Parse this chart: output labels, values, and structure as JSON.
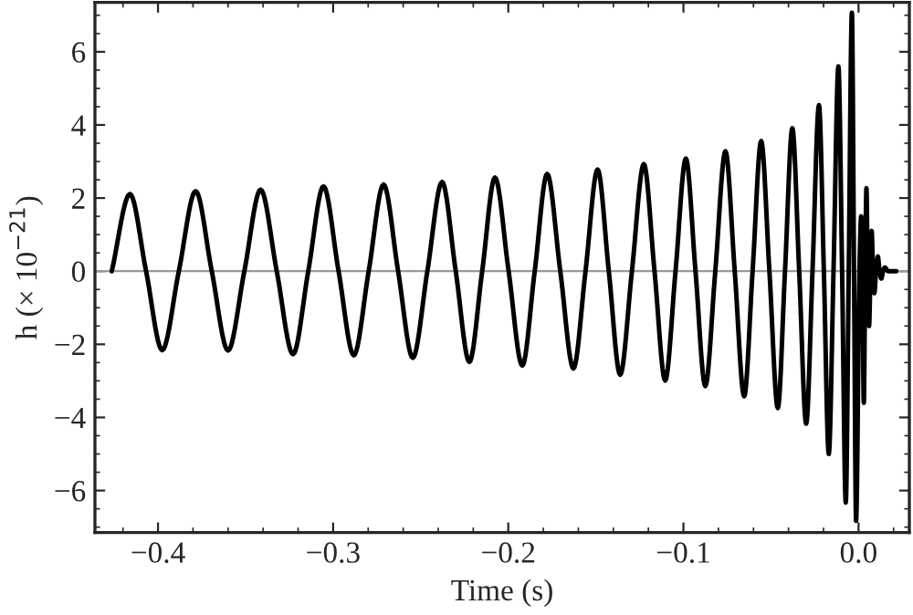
{
  "chart_data": {
    "type": "line",
    "xlabel": "Time (s)",
    "ylabel": "h (× 10$^{−21}$)",
    "x": [
      -0.4264,
      -0.416,
      -0.4068,
      -0.3976,
      -0.3881,
      -0.3785,
      -0.3693,
      -0.36,
      -0.3507,
      -0.3414,
      -0.3322,
      -0.3229,
      -0.3142,
      -0.3055,
      -0.2969,
      -0.2882,
      -0.2797,
      -0.2712,
      -0.2629,
      -0.2545,
      -0.2462,
      -0.2378,
      -0.23,
      -0.2222,
      -0.2149,
      -0.2076,
      -0.1998,
      -0.192,
      -0.1849,
      -0.1778,
      -0.1703,
      -0.1628,
      -0.1559,
      -0.149,
      -0.1426,
      -0.1361,
      -0.1294,
      -0.1226,
      -0.1165,
      -0.1104,
      -0.1045,
      -0.0986,
      -0.0931,
      -0.0875,
      -0.0818,
      -0.076,
      -0.0707,
      -0.0653,
      -0.0605,
      -0.0556,
      -0.0509,
      -0.0461,
      -0.042,
      -0.0378,
      -0.0339,
      -0.0299,
      -0.0263,
      -0.0226,
      -0.0198,
      -0.017,
      -0.0143,
      -0.0115,
      -0.0094,
      -0.0073,
      -0.0056,
      -0.0038,
      -0.0026,
      -0.0014,
      0.0005,
      0.0015,
      0.0022,
      0.003,
      0.0038,
      0.0045,
      0.0052,
      0.006,
      0.0068,
      0.0075,
      0.0082,
      0.009,
      0.01,
      0.011,
      0.012,
      0.013,
      0.014,
      0.015,
      0.017,
      0.0215
    ],
    "series": [
      {
        "color": "#000000",
        "values": [
          0,
          2.11,
          0,
          -2.16,
          0,
          2.19,
          0,
          -2.17,
          0,
          2.23,
          0,
          -2.27,
          0,
          2.32,
          0,
          -2.3,
          0,
          2.37,
          0,
          -2.37,
          0,
          2.44,
          0,
          -2.48,
          0,
          2.56,
          0,
          -2.58,
          0,
          2.66,
          0,
          -2.66,
          0,
          2.78,
          0,
          -2.83,
          0,
          2.93,
          0,
          -2.99,
          0,
          3.08,
          0,
          -3.14,
          0,
          3.28,
          0,
          -3.42,
          0,
          3.56,
          0,
          -3.74,
          0,
          3.91,
          0,
          -4.17,
          0,
          4.54,
          0,
          -5.0,
          0,
          5.6,
          0,
          -6.33,
          0,
          7.07,
          0,
          -6.83,
          0,
          1.5,
          0,
          -3.6,
          0,
          2.27,
          0,
          -1.5,
          0,
          1.1,
          0,
          -0.6,
          0,
          0.4,
          0,
          -0.2,
          0,
          0.1,
          0,
          0
        ]
      }
    ],
    "xlim": [
      -0.436,
      0.029
    ],
    "ylim": [
      -7.15,
      7.35
    ],
    "xticks": [
      {
        "value": -0.4,
        "label": "−0.4"
      },
      {
        "value": -0.3,
        "label": "−0.3"
      },
      {
        "value": -0.2,
        "label": "−0.2"
      },
      {
        "value": -0.1,
        "label": "−0.1"
      },
      {
        "value": 0.0,
        "label": "0.0"
      }
    ],
    "yticks": [
      {
        "value": -6,
        "label": "−6"
      },
      {
        "value": -4,
        "label": "−4"
      },
      {
        "value": -2,
        "label": "−2"
      },
      0,
      2,
      4,
      6
    ],
    "ref_lines": [
      {
        "axis": "y",
        "value": 0,
        "color": "#999999"
      }
    ],
    "grid": false,
    "legend": false,
    "marker": "none",
    "line_style": "solid"
  }
}
